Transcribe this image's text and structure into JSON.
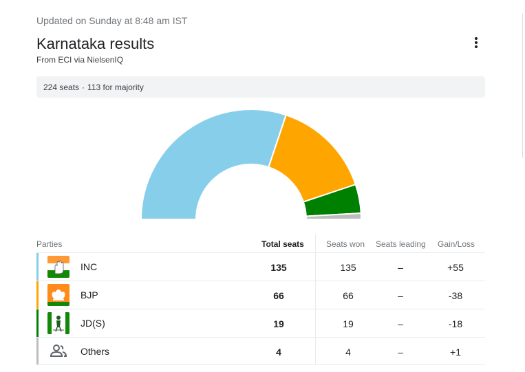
{
  "header": {
    "updated": "Updated on Sunday at 8:48 am IST",
    "title": "Karnataka results",
    "source": "From ECI via NielsenIQ"
  },
  "summary": {
    "seats": "224 seats",
    "separator": "·",
    "majority": "113 for majority"
  },
  "table": {
    "headers": {
      "parties": "Parties",
      "total": "Total seats",
      "won": "Seats won",
      "leading": "Seats leading",
      "gain": "Gain/Loss"
    },
    "rows": [
      {
        "party": "INC",
        "total": "135",
        "won": "135",
        "leading": "–",
        "gain": "+55",
        "color": "#87ceeb",
        "icon": "inc-hand-logo-icon"
      },
      {
        "party": "BJP",
        "total": "66",
        "won": "66",
        "leading": "–",
        "gain": "-38",
        "color": "#ffa500",
        "icon": "bjp-lotus-logo-icon"
      },
      {
        "party": "JD(S)",
        "total": "19",
        "won": "19",
        "leading": "–",
        "gain": "-18",
        "color": "#008000",
        "icon": "jds-farmer-logo-icon"
      },
      {
        "party": "Others",
        "total": "4",
        "won": "4",
        "leading": "–",
        "gain": "+1",
        "color": "#bdbdbd",
        "icon": "people-icon"
      }
    ]
  },
  "chart_data": {
    "type": "pie",
    "style": "semicircle-donut",
    "total_seats": 224,
    "slices": [
      {
        "label": "INC",
        "value": 135,
        "color": "#87ceeb"
      },
      {
        "label": "BJP",
        "value": 66,
        "color": "#ffa500"
      },
      {
        "label": "JD(S)",
        "value": 19,
        "color": "#008000"
      },
      {
        "label": "Others",
        "value": 4,
        "color": "#bdbdbd"
      }
    ]
  }
}
